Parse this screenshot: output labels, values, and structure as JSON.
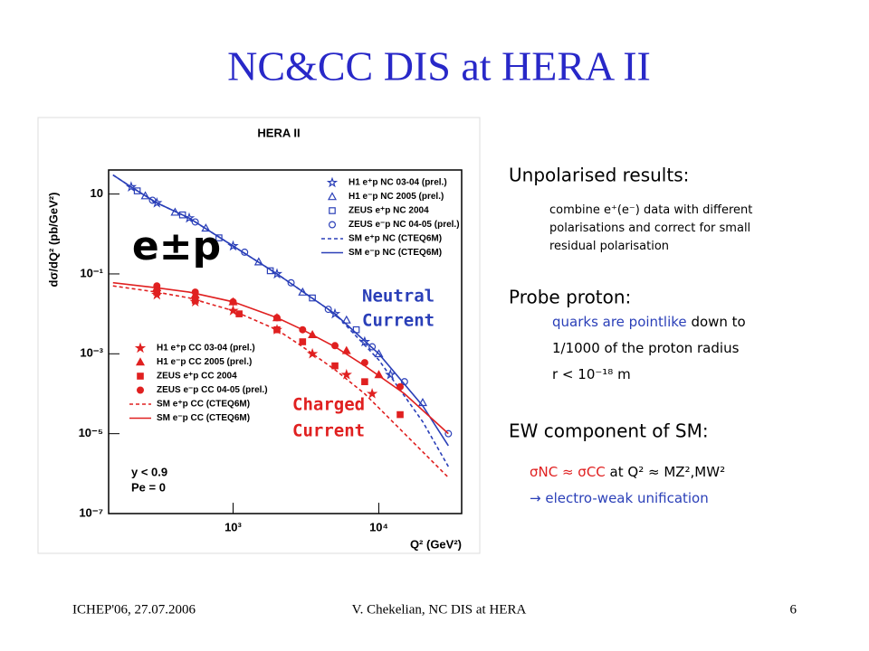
{
  "slide": {
    "title": "NC&CC DIS at HERA II",
    "footer": {
      "left": "ICHEP'06, 27.07.2006",
      "center": "V. Chekelian,  NC DIS at HERA",
      "right": "6"
    },
    "sections": [
      {
        "heading": "Unpolarised results:",
        "lines": [
          [
            "combine e⁺(e⁻) data with different"
          ],
          [
            "polarisations and correct for small"
          ],
          [
            "residual polarisation"
          ]
        ]
      },
      {
        "heading": "Probe proton:",
        "lines": [
          [
            "quarks are pointlike",
            "down to"
          ],
          [
            "1/1000 of the proton radius"
          ],
          [
            "r < 10⁻¹⁸ m"
          ]
        ]
      },
      {
        "heading": "EW component of SM:",
        "lines": [
          [
            "σNC ≈ σCC",
            "at Q² ≈ MZ²,MW²"
          ],
          [
            "→ electro-weak unification"
          ]
        ]
      }
    ]
  },
  "chart_data": {
    "type": "scatter",
    "title": "HERA II",
    "xlabel": "Q² (GeV²)",
    "ylabel": "dσ/dQ² (pb/GeV²)",
    "log_x": true,
    "log_y": true,
    "xlim": [
      140,
      37000
    ],
    "ylim": [
      1e-07,
      40
    ],
    "xticks": [
      {
        "value": 1000,
        "label": "10³"
      },
      {
        "value": 10000,
        "label": "10⁴"
      }
    ],
    "yticks": [
      10,
      {
        "value": 0.1,
        "label": "10⁻¹"
      },
      {
        "value": 0.001,
        "label": "10⁻³"
      },
      {
        "value": 1e-05,
        "label": "10⁻⁵"
      },
      {
        "value": 1e-07,
        "label": "10⁻⁷"
      }
    ],
    "annotations": {
      "process": "e±p",
      "nc": [
        "Neutral",
        "Current"
      ],
      "cc": [
        "Charged",
        "Current"
      ],
      "cuts": [
        "y < 0.9",
        "Pe = 0"
      ]
    },
    "series": [
      {
        "name": "H1 e⁺p NC 03-04 (prel.)",
        "color": "#2a3fb8",
        "marker": "star",
        "filled": false,
        "x": [
          200,
          300,
          500,
          1000,
          2000,
          5000,
          8000,
          12000
        ],
        "values": [
          15,
          6,
          2.5,
          0.5,
          0.1,
          0.01,
          0.002,
          0.0003
        ]
      },
      {
        "name": "H1 e⁻p NC 2005 (prel.)",
        "color": "#2a3fb8",
        "marker": "triangle",
        "filled": false,
        "x": [
          250,
          400,
          650,
          1500,
          3000,
          6000,
          10000,
          20000
        ],
        "values": [
          9,
          3.5,
          1.4,
          0.2,
          0.035,
          0.007,
          0.001,
          6e-05
        ]
      },
      {
        "name": "ZEUS e⁺p NC 2004",
        "color": "#2a3fb8",
        "marker": "square",
        "filled": false,
        "x": [
          220,
          450,
          800,
          1800,
          3500,
          7000
        ],
        "values": [
          12,
          3,
          0.8,
          0.12,
          0.025,
          0.004
        ]
      },
      {
        "name": "ZEUS e⁻p NC 04-05 (prel.)",
        "color": "#2a3fb8",
        "marker": "circle",
        "filled": false,
        "x": [
          280,
          550,
          1200,
          2500,
          4500,
          9000,
          15000,
          30000
        ],
        "values": [
          7,
          2,
          0.35,
          0.06,
          0.013,
          0.0015,
          0.0002,
          1e-05
        ]
      },
      {
        "name": "SM e⁺p NC (CTEQ6M)",
        "color": "#2a3fb8",
        "marker": "line",
        "dashed": true,
        "x": [
          150,
          200,
          300,
          500,
          1000,
          2000,
          5000,
          10000,
          20000,
          30000
        ],
        "values": [
          30,
          15,
          6,
          2.5,
          0.5,
          0.1,
          0.01,
          0.0007,
          2e-05,
          1.5e-06
        ]
      },
      {
        "name": "SM e⁻p NC (CTEQ6M)",
        "color": "#2a3fb8",
        "marker": "line",
        "dashed": false,
        "x": [
          150,
          200,
          300,
          500,
          1000,
          2000,
          5000,
          10000,
          20000,
          30000
        ],
        "values": [
          30,
          15,
          6,
          2.5,
          0.5,
          0.1,
          0.01,
          0.001,
          5e-05,
          5e-06
        ]
      },
      {
        "name": "H1 e⁺p CC 03-04 (prel.)",
        "color": "#e02020",
        "marker": "star",
        "filled": true,
        "x": [
          300,
          550,
          1000,
          2000,
          3500,
          6000,
          9000
        ],
        "values": [
          0.03,
          0.02,
          0.012,
          0.004,
          0.001,
          0.0003,
          0.0001
        ]
      },
      {
        "name": "H1 e⁻p CC 2005 (prel.)",
        "color": "#e02020",
        "marker": "triangle",
        "filled": true,
        "x": [
          300,
          550,
          1000,
          2000,
          3500,
          6000,
          10000
        ],
        "values": [
          0.045,
          0.03,
          0.02,
          0.008,
          0.003,
          0.0012,
          0.0003
        ]
      },
      {
        "name": "ZEUS e⁺p CC 2004",
        "color": "#e02020",
        "marker": "square",
        "filled": true,
        "x": [
          300,
          550,
          1100,
          2000,
          3000,
          5000,
          8000,
          14000
        ],
        "values": [
          0.035,
          0.022,
          0.01,
          0.004,
          0.002,
          0.0005,
          0.0002,
          3e-05
        ]
      },
      {
        "name": "ZEUS e⁻p CC 04-05 (prel.)",
        "color": "#e02020",
        "marker": "circle",
        "filled": true,
        "x": [
          300,
          550,
          1000,
          2000,
          3000,
          5000,
          8000,
          14000
        ],
        "values": [
          0.05,
          0.035,
          0.02,
          0.008,
          0.004,
          0.0016,
          0.0006,
          0.00015
        ]
      },
      {
        "name": "SM e⁺p CC (CTEQ6M)",
        "color": "#e02020",
        "marker": "line",
        "dashed": true,
        "x": [
          150,
          300,
          500,
          1000,
          2000,
          3000,
          5000,
          8000,
          15000,
          30000
        ],
        "values": [
          0.05,
          0.035,
          0.025,
          0.012,
          0.004,
          0.0015,
          0.0004,
          0.0001,
          1e-05,
          8e-07
        ]
      },
      {
        "name": "SM e⁻p CC (CTEQ6M)",
        "color": "#e02020",
        "marker": "line",
        "dashed": false,
        "x": [
          150,
          300,
          500,
          1000,
          2000,
          3000,
          5000,
          8000,
          15000,
          30000
        ],
        "values": [
          0.06,
          0.045,
          0.035,
          0.02,
          0.008,
          0.004,
          0.0015,
          0.0005,
          0.0001,
          1e-05
        ]
      }
    ]
  }
}
